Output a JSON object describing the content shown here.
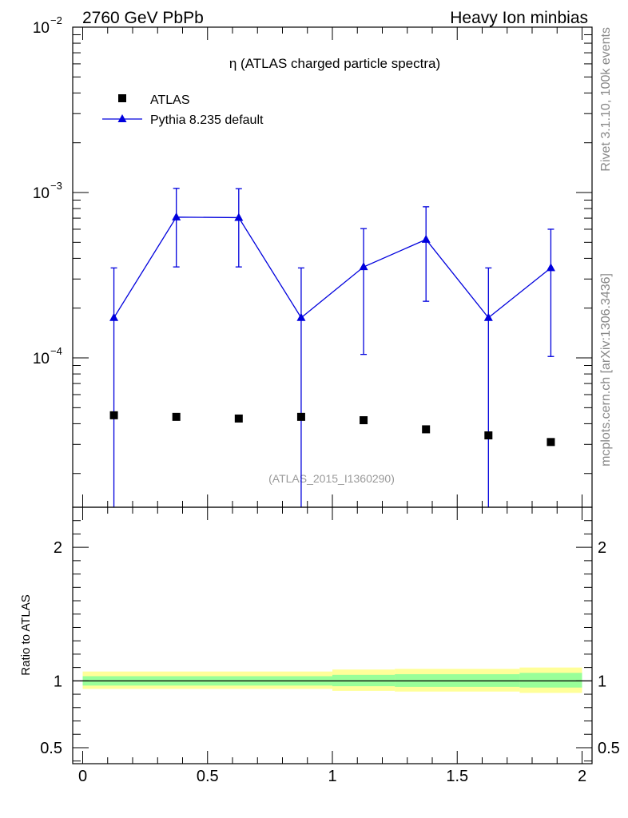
{
  "header": {
    "left": "2760 GeV PbPb",
    "right": "Heavy Ion minbias"
  },
  "side": {
    "top": "Rivet 3.1.10,  100k events",
    "bottom": "mcplots.cern.ch [arXiv:1306.3436]"
  },
  "chart_data": {
    "type": "scatter",
    "title": "η (ATLAS charged particle spectra)",
    "watermark": "(ATLAS_2015_I1360290)",
    "main": {
      "yscale": "log",
      "ylim": [
        1.25e-05,
        0.01
      ],
      "xlim": [
        -0.04,
        2.04
      ],
      "ytick_labels": [
        {
          "value": 0.01,
          "base": "10",
          "exp": "−2"
        },
        {
          "value": 0.001,
          "base": "10",
          "exp": "−3"
        },
        {
          "value": 0.0001,
          "base": "10",
          "exp": "−4"
        }
      ]
    },
    "series": [
      {
        "name": "ATLAS",
        "marker": "square",
        "color": "#000000",
        "x": [
          0.125,
          0.375,
          0.625,
          0.875,
          1.125,
          1.375,
          1.625,
          1.875
        ],
        "y": [
          4.5e-05,
          4.4e-05,
          4.3e-05,
          4.4e-05,
          4.2e-05,
          3.7e-05,
          3.4e-05,
          3.1e-05
        ]
      },
      {
        "name": "Pythia 8.235 default",
        "marker": "triangle",
        "color": "#0000dd",
        "x": [
          0.125,
          0.375,
          0.625,
          0.875,
          1.125,
          1.375,
          1.625,
          1.875
        ],
        "y": [
          0.000175,
          0.00071,
          0.000705,
          0.000175,
          0.000355,
          0.00052,
          0.000175,
          0.00035
        ],
        "yerr_low": [
          0.000175,
          0.000355,
          0.00035,
          0.000175,
          0.00025,
          0.0003,
          0.000175,
          0.000248
        ],
        "yerr_high": [
          0.000175,
          0.00035,
          0.00035,
          0.000175,
          0.00025,
          0.0003,
          0.000175,
          0.00025
        ]
      }
    ],
    "ratio": {
      "ylabel": "Ratio to ATLAS",
      "ylim": [
        0.38,
        2.3
      ],
      "ytick_labels": [
        "0.5",
        "1",
        "2"
      ],
      "ytick_values": [
        0.5,
        1,
        2
      ],
      "xtick_labels": [
        "0",
        "0.5",
        "1",
        "1.5",
        "2"
      ],
      "xtick_values": [
        0,
        0.5,
        1,
        1.5,
        2
      ],
      "bands": [
        {
          "x0": 0.0,
          "x1": 1.0,
          "yellow": [
            0.94,
            1.07
          ],
          "green": [
            0.965,
            1.035
          ]
        },
        {
          "x0": 1.0,
          "x1": 1.25,
          "yellow": [
            0.925,
            1.085
          ],
          "green": [
            0.96,
            1.045
          ]
        },
        {
          "x0": 1.25,
          "x1": 1.75,
          "yellow": [
            0.92,
            1.09
          ],
          "green": [
            0.955,
            1.05
          ]
        },
        {
          "x0": 1.75,
          "x1": 2.0,
          "yellow": [
            0.91,
            1.1
          ],
          "green": [
            0.95,
            1.06
          ]
        }
      ],
      "colors": {
        "yellow": "#ffff99",
        "green": "#99ff99"
      }
    }
  }
}
